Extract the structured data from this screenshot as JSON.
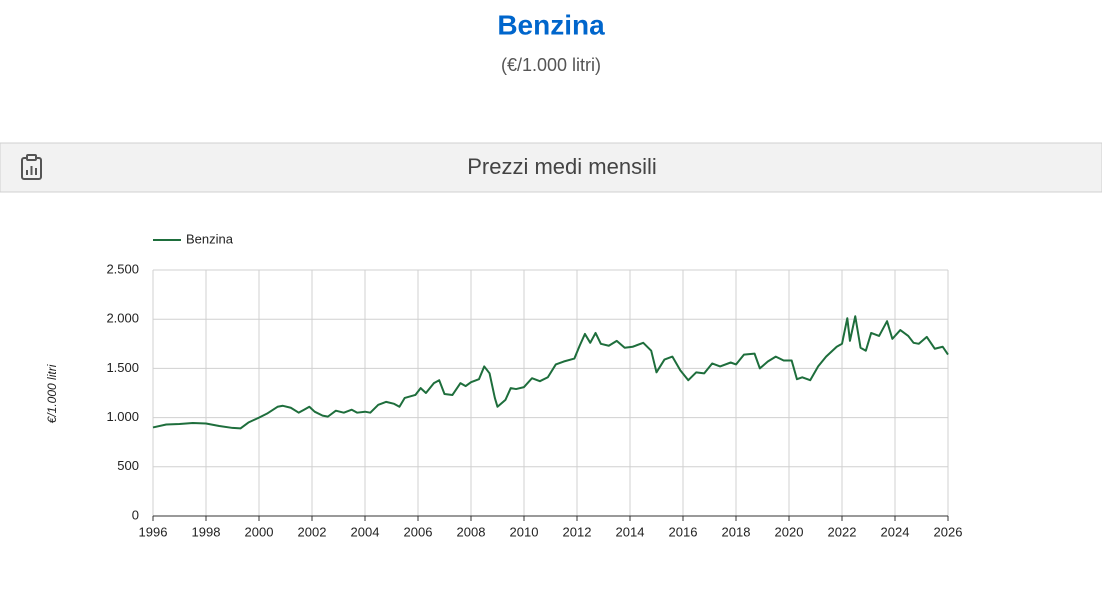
{
  "chart_data": {
    "type": "line",
    "title": "Benzina",
    "subtitle": "(€/1.000 litri)",
    "panel_title": "Prezzi medi mensili",
    "y_label": "€/1.000 litri",
    "xlim": [
      1996,
      2026
    ],
    "ylim": [
      0,
      2500
    ],
    "xticks": [
      1996,
      1998,
      2000,
      2002,
      2004,
      2006,
      2008,
      2010,
      2012,
      2014,
      2016,
      2018,
      2020,
      2022,
      2024,
      2026
    ],
    "yticks": [
      0,
      500,
      {
        "value": 1000,
        "label": "1.000"
      },
      {
        "value": 1500,
        "label": "1.500"
      },
      {
        "value": 2000,
        "label": "2.000"
      },
      {
        "value": 2500,
        "label": "2.500"
      }
    ],
    "grid": true,
    "x": [
      1996.0,
      1996.5,
      1997.0,
      1997.5,
      1998.0,
      1998.5,
      1999.0,
      1999.3,
      1999.6,
      2000.0,
      2000.3,
      2000.7,
      2000.9,
      2001.2,
      2001.5,
      2001.7,
      2001.9,
      2002.1,
      2002.4,
      2002.6,
      2002.9,
      2003.2,
      2003.5,
      2003.7,
      2004.0,
      2004.2,
      2004.5,
      2004.8,
      2005.1,
      2005.3,
      2005.5,
      2005.9,
      2006.1,
      2006.3,
      2006.6,
      2006.8,
      2007.0,
      2007.3,
      2007.6,
      2007.8,
      2008.0,
      2008.3,
      2008.5,
      2008.7,
      2008.9,
      2009.0,
      2009.3,
      2009.5,
      2009.7,
      2010.0,
      2010.3,
      2010.6,
      2010.9,
      2011.2,
      2011.5,
      2011.9,
      2012.1,
      2012.3,
      2012.5,
      2012.7,
      2012.9,
      2013.2,
      2013.5,
      2013.8,
      2014.1,
      2014.5,
      2014.8,
      2015.0,
      2015.3,
      2015.6,
      2015.9,
      2016.2,
      2016.5,
      2016.8,
      2017.1,
      2017.4,
      2017.8,
      2018.0,
      2018.3,
      2018.7,
      2018.9,
      2019.2,
      2019.5,
      2019.8,
      2020.1,
      2020.3,
      2020.5,
      2020.8,
      2021.1,
      2021.4,
      2021.8,
      2022.0,
      2022.2,
      2022.3,
      2022.5,
      2022.7,
      2022.9,
      2023.1,
      2023.4,
      2023.7,
      2023.9,
      2024.2,
      2024.5,
      2024.7,
      2024.9,
      2025.2,
      2025.5,
      2025.8,
      2026.0
    ],
    "series": [
      {
        "name": "Benzina",
        "color": "#1e6e3c",
        "values": [
          900,
          930,
          935,
          945,
          940,
          915,
          895,
          890,
          950,
          1000,
          1040,
          1110,
          1120,
          1100,
          1050,
          1080,
          1110,
          1060,
          1020,
          1010,
          1070,
          1050,
          1080,
          1050,
          1060,
          1050,
          1130,
          1160,
          1140,
          1110,
          1200,
          1230,
          1300,
          1250,
          1350,
          1380,
          1240,
          1230,
          1350,
          1320,
          1360,
          1390,
          1520,
          1450,
          1200,
          1110,
          1180,
          1300,
          1290,
          1310,
          1400,
          1370,
          1410,
          1540,
          1570,
          1600,
          1730,
          1850,
          1760,
          1860,
          1750,
          1730,
          1780,
          1710,
          1720,
          1760,
          1680,
          1460,
          1590,
          1620,
          1480,
          1380,
          1460,
          1450,
          1550,
          1520,
          1560,
          1540,
          1640,
          1650,
          1500,
          1570,
          1620,
          1580,
          1580,
          1390,
          1410,
          1380,
          1520,
          1620,
          1720,
          1750,
          2010,
          1780,
          2030,
          1710,
          1680,
          1860,
          1830,
          1980,
          1800,
          1890,
          1830,
          1760,
          1750,
          1820,
          1700,
          1720,
          1640
        ]
      }
    ]
  }
}
